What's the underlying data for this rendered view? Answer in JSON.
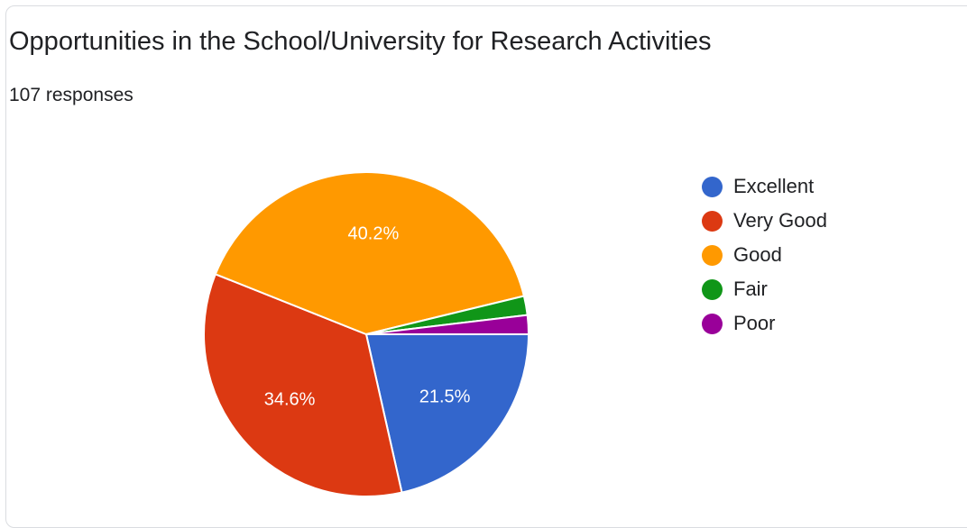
{
  "header": {
    "title": "Opportunities in the School/University for Research Activities",
    "responses": "107 responses"
  },
  "colors": {
    "excellent": "#3366cc",
    "very_good": "#dc3912",
    "good": "#ff9900",
    "fair": "#109618",
    "poor": "#990099",
    "slice_label": "#ffffff"
  },
  "chart_data": {
    "type": "pie",
    "title": "Opportunities in the School/University for Research Activities",
    "subtitle": "107 responses",
    "legend_position": "right",
    "slices": [
      {
        "label": "Excellent",
        "value": 21.5,
        "color": "#3366cc",
        "display": "21.5%"
      },
      {
        "label": "Very Good",
        "value": 34.6,
        "color": "#dc3912",
        "display": "34.6%"
      },
      {
        "label": "Good",
        "value": 40.2,
        "color": "#ff9900",
        "display": "40.2%"
      },
      {
        "label": "Fair",
        "value": 1.9,
        "color": "#109618",
        "display": ""
      },
      {
        "label": "Poor",
        "value": 1.9,
        "color": "#990099",
        "display": ""
      }
    ]
  }
}
